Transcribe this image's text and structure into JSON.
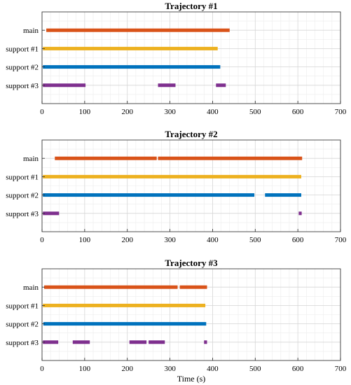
{
  "chart_data": [
    {
      "type": "bar",
      "title": "Trajectory #1",
      "xlabel": "",
      "xlim": [
        0,
        700
      ],
      "xticks": [
        0,
        100,
        200,
        300,
        400,
        500,
        600,
        700
      ],
      "rows": [
        {
          "label": "main",
          "color": "#D95319",
          "segments": [
            [
              10,
              440
            ]
          ]
        },
        {
          "label": "support #1",
          "color": "#EDB120",
          "segments": [
            [
              2,
              412
            ]
          ]
        },
        {
          "label": "support #2",
          "color": "#0072BD",
          "segments": [
            [
              2,
              418
            ]
          ]
        },
        {
          "label": "support #3",
          "color": "#7E2F8E",
          "segments": [
            [
              2,
              102
            ],
            [
              272,
              313
            ],
            [
              408,
              431
            ]
          ]
        }
      ]
    },
    {
      "type": "bar",
      "title": "Trajectory #2",
      "xlabel": "",
      "xlim": [
        0,
        700
      ],
      "xticks": [
        0,
        100,
        200,
        300,
        400,
        500,
        600,
        700
      ],
      "rows": [
        {
          "label": "main",
          "color": "#D95319",
          "segments": [
            [
              30,
              269
            ],
            [
              272,
              610
            ]
          ]
        },
        {
          "label": "support #1",
          "color": "#EDB120",
          "segments": [
            [
              2,
              608
            ]
          ]
        },
        {
          "label": "support #2",
          "color": "#0072BD",
          "segments": [
            [
              2,
              498
            ],
            [
              523,
              608
            ]
          ]
        },
        {
          "label": "support #3",
          "color": "#7E2F8E",
          "segments": [
            [
              2,
              40
            ],
            [
              602,
              609
            ]
          ]
        }
      ]
    },
    {
      "type": "bar",
      "title": "Trajectory #3",
      "xlabel": "Time (s)",
      "xlim": [
        0,
        700
      ],
      "xticks": [
        0,
        100,
        200,
        300,
        400,
        500,
        600,
        700
      ],
      "rows": [
        {
          "label": "main",
          "color": "#D95319",
          "segments": [
            [
              5,
              318
            ],
            [
              323,
              387
            ]
          ]
        },
        {
          "label": "support #1",
          "color": "#EDB120",
          "segments": [
            [
              2,
              383
            ]
          ]
        },
        {
          "label": "support #2",
          "color": "#0072BD",
          "segments": [
            [
              3,
              385
            ]
          ]
        },
        {
          "label": "support #3",
          "color": "#7E2F8E",
          "segments": [
            [
              2,
              38
            ],
            [
              72,
              112
            ],
            [
              205,
              245
            ],
            [
              250,
              288
            ],
            [
              380,
              387
            ]
          ]
        }
      ]
    }
  ]
}
